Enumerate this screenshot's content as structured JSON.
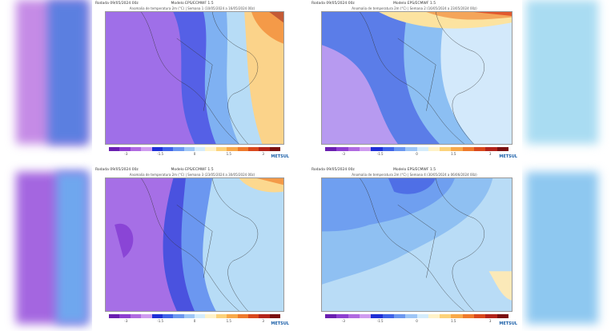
{
  "panels": [
    {
      "header": "Rodada 09/05/2024 00z",
      "model": "Modelo EPS/ECMWF 1.5",
      "subtitle": "Anomalia de temperatura 2m (°C) | Semana 1 (10/05/2024 a 16/05/2024 00z)",
      "colorbar_labels": [
        "-3",
        "-1.5",
        "0",
        "1.5",
        "3"
      ],
      "logo": "METSUL"
    },
    {
      "header": "Rodada 09/05/2024 00z",
      "model": "Modelo EPS/ECMWF 1.5",
      "subtitle": "Anomalia de temperatura 2m (°C) | Semana 2 (16/05/2024 a 23/05/2024 00z)",
      "colorbar_labels": [
        "-3",
        "-1.5",
        "0",
        "1.5",
        "3"
      ],
      "logo": "METSUL"
    },
    {
      "header": "Rodada 09/05/2024 00z",
      "model": "Modelo EPS/ECMWF 1.5",
      "subtitle": "Anomalia de temperatura 2m (°C) | Semana 3 (23/05/2024 a 30/05/2024 00z)",
      "colorbar_labels": [
        "-3",
        "-1.5",
        "0",
        "1.5",
        "3"
      ],
      "logo": "METSUL"
    },
    {
      "header": "Rodada 09/05/2024 00z",
      "model": "Modelo EPS/ECMWF 1.5",
      "subtitle": "Anomalia de temperatura 2m (°C) | Semana 4 (30/05/2024 a 06/06/2024 00z)",
      "colorbar_labels": [
        "-3",
        "-1.5",
        "0",
        "1.5",
        "3"
      ],
      "logo": "METSUL"
    }
  ]
}
